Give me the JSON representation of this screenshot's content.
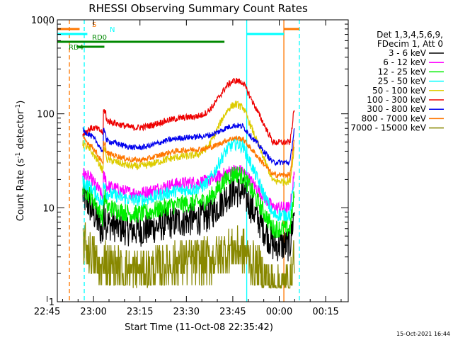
{
  "chart_data": {
    "type": "line",
    "title": "RHESSI Observing Summary Count Rates",
    "xlabel": "Start Time (11-Oct-08 22:35:42)",
    "ylabel_main": "Count Rate (s",
    "ylabel_sup": "-1",
    "ylabel_tail": " detector",
    "ylabel_sup2": "-1",
    "ylabel_close": ")",
    "y_scale": "log",
    "ylim": [
      1,
      1000
    ],
    "x_range_minutes": [
      -11.7,
      42.3
    ],
    "x_ticks": [
      {
        "t": -15,
        "label": "22:45"
      },
      {
        "t": 0,
        "label": "23:00"
      },
      {
        "t": 15,
        "label": "23:15"
      },
      {
        "t": 30,
        "label": "23:30"
      },
      {
        "t": 45,
        "label": "23:45"
      },
      {
        "t": 60,
        "label": "00:00"
      },
      {
        "t": 75,
        "label": "00:15"
      }
    ],
    "y_ticks": [
      {
        "v": 1,
        "label": "1"
      },
      {
        "v": 10,
        "label": "10"
      },
      {
        "v": 100,
        "label": "100"
      },
      {
        "v": 1000,
        "label": "1000"
      }
    ],
    "legend_header": [
      "Det 1,3,4,5,6,9,",
      "FDecim 1, Att 0"
    ],
    "series": [
      {
        "name": "3 - 6 keV",
        "color": "#000000",
        "base": 5.0,
        "peak": 15,
        "preflare": 14,
        "noise": 0.18
      },
      {
        "name": "6 - 12 keV",
        "color": "#ff00ff",
        "base": 12.5,
        "peak": 25,
        "preflare": 24,
        "noise": 0.07
      },
      {
        "name": "12 - 25 keV",
        "color": "#00ee00",
        "base": 7.5,
        "peak": 23,
        "preflare": 17,
        "noise": 0.1
      },
      {
        "name": "25 - 50 keV",
        "color": "#00ffff",
        "base": 10.5,
        "peak": 48,
        "preflare": 19,
        "noise": 0.07
      },
      {
        "name": "50 - 100 keV",
        "color": "#ddcc00",
        "base": 24,
        "peak": 125,
        "preflare": 49,
        "noise": 0.04
      },
      {
        "name": "100 - 300 keV",
        "color": "#ee0000",
        "base": 62,
        "peak": 225,
        "preflare": 60,
        "noise": 0.035
      },
      {
        "name": "300 - 800 keV",
        "color": "#0000ee",
        "base": 38,
        "peak": 75,
        "preflare": 67,
        "noise": 0.03
      },
      {
        "name": "800 - 7000 keV",
        "color": "#ff7700",
        "base": 28,
        "peak": 55,
        "preflare": 56,
        "noise": 0.03
      },
      {
        "name": "7000 - 15000 keV",
        "color": "#888800",
        "base": 1.8,
        "peak": 3.6,
        "preflare": 4.5,
        "noise": 0.25
      }
    ],
    "flags": [
      {
        "label": "S",
        "color": "#ff7700",
        "segments": [
          [
            -11.7,
            -4.5
          ],
          [
            61.5,
            66.5
          ]
        ]
      },
      {
        "label": "N",
        "color": "#00ffff",
        "segments": [
          [
            -11.7,
            -2.0
          ],
          [
            49.5,
            61.5
          ]
        ]
      },
      {
        "label": "RD0",
        "color": "#008800",
        "segments": [
          [
            -11.7,
            42.3
          ]
        ]
      },
      {
        "label": "RD4",
        "color": "#008800",
        "segments": [
          [
            -5.5,
            3.5
          ]
        ]
      }
    ],
    "vertical_lines": [
      {
        "t": -7.8,
        "color": "#ff7700",
        "dash": true
      },
      {
        "t": -3.0,
        "color": "#00ffff",
        "dash": true
      },
      {
        "t": 49.5,
        "color": "#00ffff",
        "dash": false
      },
      {
        "t": 61.5,
        "color": "#ff7700",
        "dash": false
      },
      {
        "t": 66.5,
        "color": "#00ffff",
        "dash": true
      }
    ],
    "timestamp": "15-Oct-2021 16:44"
  }
}
